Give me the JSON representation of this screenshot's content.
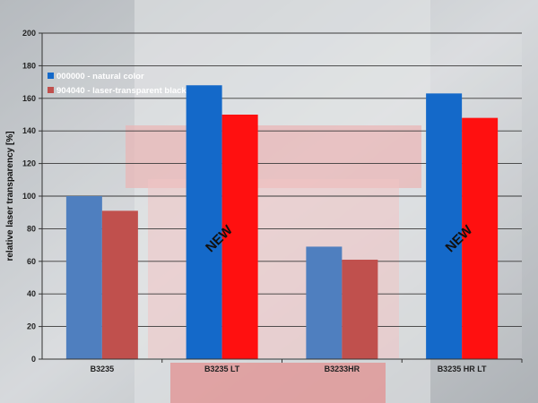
{
  "chart_data": {
    "type": "bar",
    "ylabel": "relative laser transparency [%]",
    "ylim": [
      0,
      200
    ],
    "yticks": [
      0,
      20,
      40,
      60,
      80,
      100,
      120,
      140,
      160,
      180,
      200
    ],
    "grid": true,
    "legend_position": "top-left",
    "categories": [
      "B3235",
      "B3235 LT",
      "B3233HR",
      "B3235 HR LT"
    ],
    "series": [
      {
        "name": "000000 - natural color",
        "values": [
          100,
          168,
          69,
          163
        ]
      },
      {
        "name": "904040 - laser-transparent black",
        "values": [
          91,
          150,
          61,
          148
        ]
      }
    ],
    "bar_colors": [
      [
        "#4f7fbf",
        "#c0504d"
      ],
      [
        "#1469c9",
        "#ff1010"
      ],
      [
        "#4f7fbf",
        "#c0504d"
      ],
      [
        "#1469c9",
        "#ff1010"
      ]
    ],
    "annotations": [
      {
        "text": "NEW",
        "category": "B3235 LT",
        "y": 72
      },
      {
        "text": "NEW",
        "category": "B3235 HR LT",
        "y": 72
      }
    ]
  },
  "colors": {
    "background": "#b9bec4",
    "plot_overlay": "#ffffff",
    "legend_marker_1": "#1469c9",
    "legend_marker_2": "#c0504d"
  }
}
